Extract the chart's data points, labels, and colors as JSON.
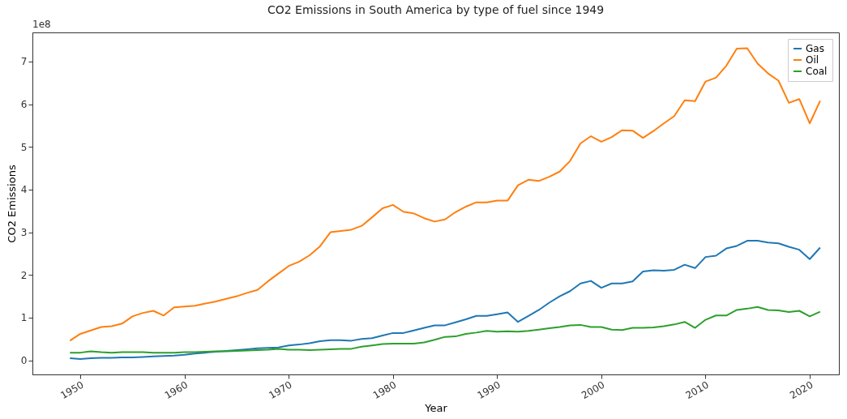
{
  "chart_data": {
    "type": "line",
    "title": "CO2 Emissions in South America by type of fuel since 1949",
    "xlabel": "Year",
    "ylabel": "CO2 Emissions",
    "annotations": [
      "1e8"
    ],
    "x": [
      1949,
      1950,
      1951,
      1952,
      1953,
      1954,
      1955,
      1956,
      1957,
      1958,
      1959,
      1960,
      1961,
      1962,
      1963,
      1964,
      1965,
      1966,
      1967,
      1968,
      1969,
      1970,
      1971,
      1972,
      1973,
      1974,
      1975,
      1976,
      1977,
      1978,
      1979,
      1980,
      1981,
      1982,
      1983,
      1984,
      1985,
      1986,
      1987,
      1988,
      1989,
      1990,
      1991,
      1992,
      1993,
      1994,
      1995,
      1996,
      1997,
      1998,
      1999,
      2000,
      2001,
      2002,
      2003,
      2004,
      2005,
      2006,
      2007,
      2008,
      2009,
      2010,
      2011,
      2012,
      2013,
      2014,
      2015,
      2016,
      2017,
      2018,
      2019,
      2020,
      2021
    ],
    "series": [
      {
        "name": "Gas",
        "color": "#1f77b4",
        "values": [
          0.05,
          0.03,
          0.05,
          0.06,
          0.06,
          0.07,
          0.07,
          0.08,
          0.09,
          0.1,
          0.11,
          0.13,
          0.16,
          0.18,
          0.2,
          0.22,
          0.24,
          0.26,
          0.28,
          0.29,
          0.3,
          0.35,
          0.37,
          0.4,
          0.45,
          0.47,
          0.47,
          0.46,
          0.5,
          0.52,
          0.58,
          0.64,
          0.64,
          0.7,
          0.76,
          0.82,
          0.82,
          0.89,
          0.96,
          1.04,
          1.04,
          1.08,
          1.12,
          0.9,
          1.04,
          1.18,
          1.35,
          1.5,
          1.62,
          1.8,
          1.86,
          1.7,
          1.8,
          1.8,
          1.85,
          2.08,
          2.11,
          2.1,
          2.12,
          2.24,
          2.16,
          2.42,
          2.45,
          2.62,
          2.68,
          2.8,
          2.8,
          2.76,
          2.74,
          2.66,
          2.59,
          2.37,
          2.64
        ]
      },
      {
        "name": "Oil",
        "color": "#ff7f0e",
        "values": [
          0.46,
          0.62,
          0.7,
          0.78,
          0.8,
          0.86,
          1.03,
          1.11,
          1.16,
          1.05,
          1.24,
          1.26,
          1.28,
          1.33,
          1.38,
          1.44,
          1.5,
          1.58,
          1.65,
          1.85,
          2.03,
          2.21,
          2.31,
          2.46,
          2.67,
          3.0,
          3.03,
          3.06,
          3.15,
          3.35,
          3.56,
          3.64,
          3.48,
          3.44,
          3.33,
          3.25,
          3.3,
          3.47,
          3.6,
          3.7,
          3.7,
          3.74,
          3.74,
          4.1,
          4.23,
          4.2,
          4.3,
          4.42,
          4.67,
          5.08,
          5.25,
          5.12,
          5.23,
          5.39,
          5.38,
          5.21,
          5.37,
          5.55,
          5.72,
          6.09,
          6.07,
          6.53,
          6.62,
          6.9,
          7.3,
          7.31,
          6.95,
          6.72,
          6.55,
          6.03,
          6.12,
          5.55,
          6.08
        ]
      },
      {
        "name": "Coal",
        "color": "#2ca02c",
        "values": [
          0.18,
          0.18,
          0.21,
          0.19,
          0.18,
          0.19,
          0.19,
          0.19,
          0.18,
          0.18,
          0.18,
          0.19,
          0.19,
          0.2,
          0.21,
          0.21,
          0.22,
          0.23,
          0.24,
          0.25,
          0.27,
          0.25,
          0.25,
          0.24,
          0.25,
          0.26,
          0.27,
          0.27,
          0.32,
          0.35,
          0.38,
          0.39,
          0.39,
          0.39,
          0.42,
          0.48,
          0.55,
          0.56,
          0.62,
          0.65,
          0.69,
          0.67,
          0.68,
          0.67,
          0.69,
          0.72,
          0.75,
          0.78,
          0.82,
          0.83,
          0.78,
          0.78,
          0.72,
          0.71,
          0.76,
          0.76,
          0.77,
          0.8,
          0.84,
          0.9,
          0.76,
          0.95,
          1.05,
          1.05,
          1.18,
          1.21,
          1.25,
          1.18,
          1.17,
          1.13,
          1.16,
          1.03,
          1.14
        ]
      }
    ],
    "xlim": [
      1945.4,
      2022.8
    ],
    "xticks": [
      1950,
      1960,
      1970,
      1980,
      1990,
      2000,
      2010,
      2020
    ],
    "ylim": [
      -0.33,
      7.68
    ],
    "yticks": [
      0,
      1,
      2,
      3,
      4,
      5,
      6,
      7
    ],
    "grid": false,
    "legend": "top right",
    "marker": "none",
    "line_style": "solid"
  }
}
